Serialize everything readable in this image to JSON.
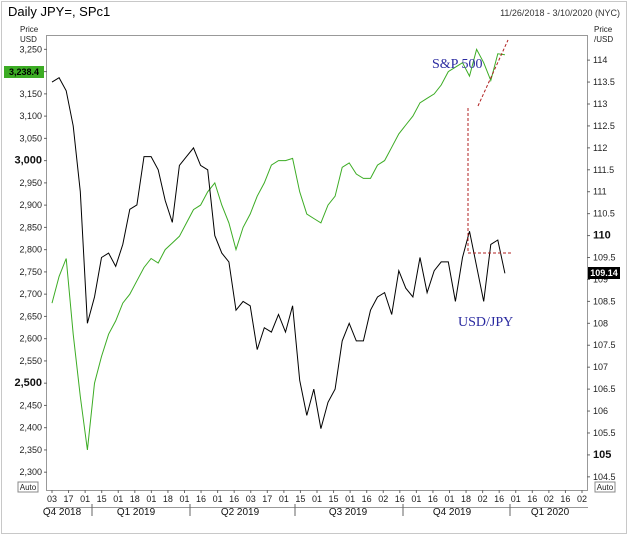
{
  "chart_data": {
    "type": "line",
    "title": "Daily JPY=, SPc1",
    "date_range": "11/26/2018 - 3/10/2020 (NYC)",
    "left_axis_unit": [
      "Price",
      "USD"
    ],
    "right_axis_unit": [
      "Price",
      "/USD"
    ],
    "auto_label": "Auto",
    "left_ticks": [
      "3,250",
      "3,200",
      "3,150",
      "3,100",
      "3,050",
      "3,000",
      "2,950",
      "2,900",
      "2,850",
      "2,800",
      "2,750",
      "2,700",
      "2,650",
      "2,600",
      "2,550",
      "2,500",
      "2,450",
      "2,400",
      "2,350",
      "2,300"
    ],
    "left_tick_values": [
      3250,
      3200,
      3150,
      3100,
      3050,
      3000,
      2950,
      2900,
      2850,
      2800,
      2750,
      2700,
      2650,
      2600,
      2550,
      2500,
      2450,
      2400,
      2350,
      2300
    ],
    "left_bold_ticks": [
      "3,000",
      "2,500"
    ],
    "left_ylim": [
      2260,
      3280
    ],
    "right_ticks": [
      "114",
      "113.5",
      "113",
      "112.5",
      "112",
      "111.5",
      "111",
      "110.5",
      "110",
      "109.5",
      "109",
      "108.5",
      "108",
      "107.5",
      "107",
      "106.5",
      "106",
      "105.5",
      "105",
      "104.5"
    ],
    "right_tick_values": [
      114,
      113.5,
      113,
      112.5,
      112,
      111.5,
      111,
      110.5,
      110,
      109.5,
      109,
      108.5,
      108,
      107.5,
      107,
      106.5,
      106,
      105.5,
      105,
      104.5
    ],
    "right_bold_ticks": [
      "110",
      "105"
    ],
    "right_ylim": [
      104.2,
      114.55
    ],
    "last_value_left": "3,238.4",
    "last_value_right": "109.14",
    "x_day_ticks": [
      "03",
      "17",
      "01",
      "15",
      "01",
      "18",
      "01",
      "18",
      "01",
      "16",
      "01",
      "16",
      "03",
      "17",
      "01",
      "15",
      "01",
      "15",
      "01",
      "16",
      "02",
      "16",
      "01",
      "16",
      "01",
      "18",
      "02",
      "16",
      "01",
      "16",
      "02",
      "16",
      "02"
    ],
    "x_quarters": [
      "Q4 2018",
      "Q1 2019",
      "Q2 2019",
      "Q3 2019",
      "Q4 2019",
      "Q1 2020"
    ],
    "annotations": {
      "sp500": "S&P 500",
      "usdjpy": "USD/JPY"
    },
    "series": [
      {
        "name": "S&P 500",
        "axis": "left",
        "color": "#3cac24",
        "dates": [
          "2018-11-26",
          "2018-12-03",
          "2018-12-10",
          "2018-12-17",
          "2018-12-24",
          "2018-12-31",
          "2019-01-07",
          "2019-01-14",
          "2019-01-21",
          "2019-01-28",
          "2019-02-04",
          "2019-02-11",
          "2019-02-18",
          "2019-02-25",
          "2019-03-04",
          "2019-03-11",
          "2019-03-18",
          "2019-03-25",
          "2019-04-01",
          "2019-04-08",
          "2019-04-15",
          "2019-04-22",
          "2019-04-29",
          "2019-05-06",
          "2019-05-13",
          "2019-05-20",
          "2019-05-27",
          "2019-06-03",
          "2019-06-10",
          "2019-06-17",
          "2019-06-24",
          "2019-07-01",
          "2019-07-08",
          "2019-07-15",
          "2019-07-22",
          "2019-07-29",
          "2019-08-05",
          "2019-08-12",
          "2019-08-19",
          "2019-08-26",
          "2019-09-02",
          "2019-09-09",
          "2019-09-16",
          "2019-09-23",
          "2019-09-30",
          "2019-10-07",
          "2019-10-14",
          "2019-10-21",
          "2019-10-28",
          "2019-11-04",
          "2019-11-11",
          "2019-11-18",
          "2019-11-25",
          "2019-12-02",
          "2019-12-09",
          "2019-12-16",
          "2019-12-23",
          "2019-12-30",
          "2020-01-06",
          "2020-01-13",
          "2020-01-20",
          "2020-01-27",
          "2020-02-03",
          "2020-02-10",
          "2020-02-17"
        ],
        "values": [
          2680,
          2740,
          2780,
          2610,
          2470,
          2350,
          2500,
          2560,
          2610,
          2640,
          2680,
          2700,
          2730,
          2760,
          2780,
          2770,
          2800,
          2815,
          2830,
          2860,
          2890,
          2900,
          2930,
          2950,
          2900,
          2860,
          2800,
          2850,
          2880,
          2920,
          2950,
          2990,
          3000,
          3000,
          3005,
          2930,
          2880,
          2870,
          2860,
          2900,
          2920,
          2985,
          2995,
          2970,
          2960,
          2960,
          2990,
          3000,
          3030,
          3060,
          3080,
          3100,
          3130,
          3140,
          3150,
          3170,
          3200,
          3210,
          3220,
          3190,
          3250,
          3220,
          3180,
          3240,
          3238
        ]
      },
      {
        "name": "USD/JPY",
        "axis": "right",
        "color": "#000000",
        "dates": [
          "2018-11-26",
          "2018-12-03",
          "2018-12-10",
          "2018-12-17",
          "2018-12-24",
          "2018-12-31",
          "2019-01-07",
          "2019-01-14",
          "2019-01-21",
          "2019-01-28",
          "2019-02-04",
          "2019-02-11",
          "2019-02-18",
          "2019-02-25",
          "2019-03-04",
          "2019-03-11",
          "2019-03-18",
          "2019-03-25",
          "2019-04-01",
          "2019-04-08",
          "2019-04-15",
          "2019-04-22",
          "2019-04-29",
          "2019-05-06",
          "2019-05-13",
          "2019-05-20",
          "2019-05-27",
          "2019-06-03",
          "2019-06-10",
          "2019-06-17",
          "2019-06-24",
          "2019-07-01",
          "2019-07-08",
          "2019-07-15",
          "2019-07-22",
          "2019-07-29",
          "2019-08-05",
          "2019-08-12",
          "2019-08-19",
          "2019-08-26",
          "2019-09-02",
          "2019-09-09",
          "2019-09-16",
          "2019-09-23",
          "2019-09-30",
          "2019-10-07",
          "2019-10-14",
          "2019-10-21",
          "2019-10-28",
          "2019-11-04",
          "2019-11-11",
          "2019-11-18",
          "2019-11-25",
          "2019-12-02",
          "2019-12-09",
          "2019-12-16",
          "2019-12-23",
          "2019-12-30",
          "2020-01-06",
          "2020-01-13",
          "2020-01-20",
          "2020-01-27",
          "2020-02-03",
          "2020-02-10",
          "2020-02-17"
        ],
        "values": [
          113.5,
          113.6,
          113.3,
          112.5,
          111.0,
          108.0,
          108.6,
          109.5,
          109.6,
          109.3,
          109.8,
          110.6,
          110.7,
          111.8,
          111.8,
          111.5,
          110.8,
          110.3,
          111.6,
          111.8,
          112.0,
          111.6,
          111.5,
          110.0,
          109.6,
          109.4,
          108.3,
          108.5,
          108.4,
          107.4,
          107.9,
          107.8,
          108.2,
          107.8,
          108.4,
          106.7,
          105.9,
          106.5,
          105.6,
          106.2,
          106.5,
          107.6,
          108.0,
          107.6,
          107.6,
          108.3,
          108.6,
          108.7,
          108.2,
          109.2,
          108.8,
          108.6,
          109.5,
          108.7,
          109.2,
          109.4,
          109.4,
          108.5,
          109.5,
          110.1,
          109.3,
          108.5,
          109.8,
          109.9,
          109.14
        ]
      }
    ]
  },
  "colors": {
    "sp500": "#3cac24",
    "usdjpy": "#000000",
    "annotation": "#2a2aa0",
    "guide": "#b02020",
    "label_bg": "#3cac24"
  }
}
